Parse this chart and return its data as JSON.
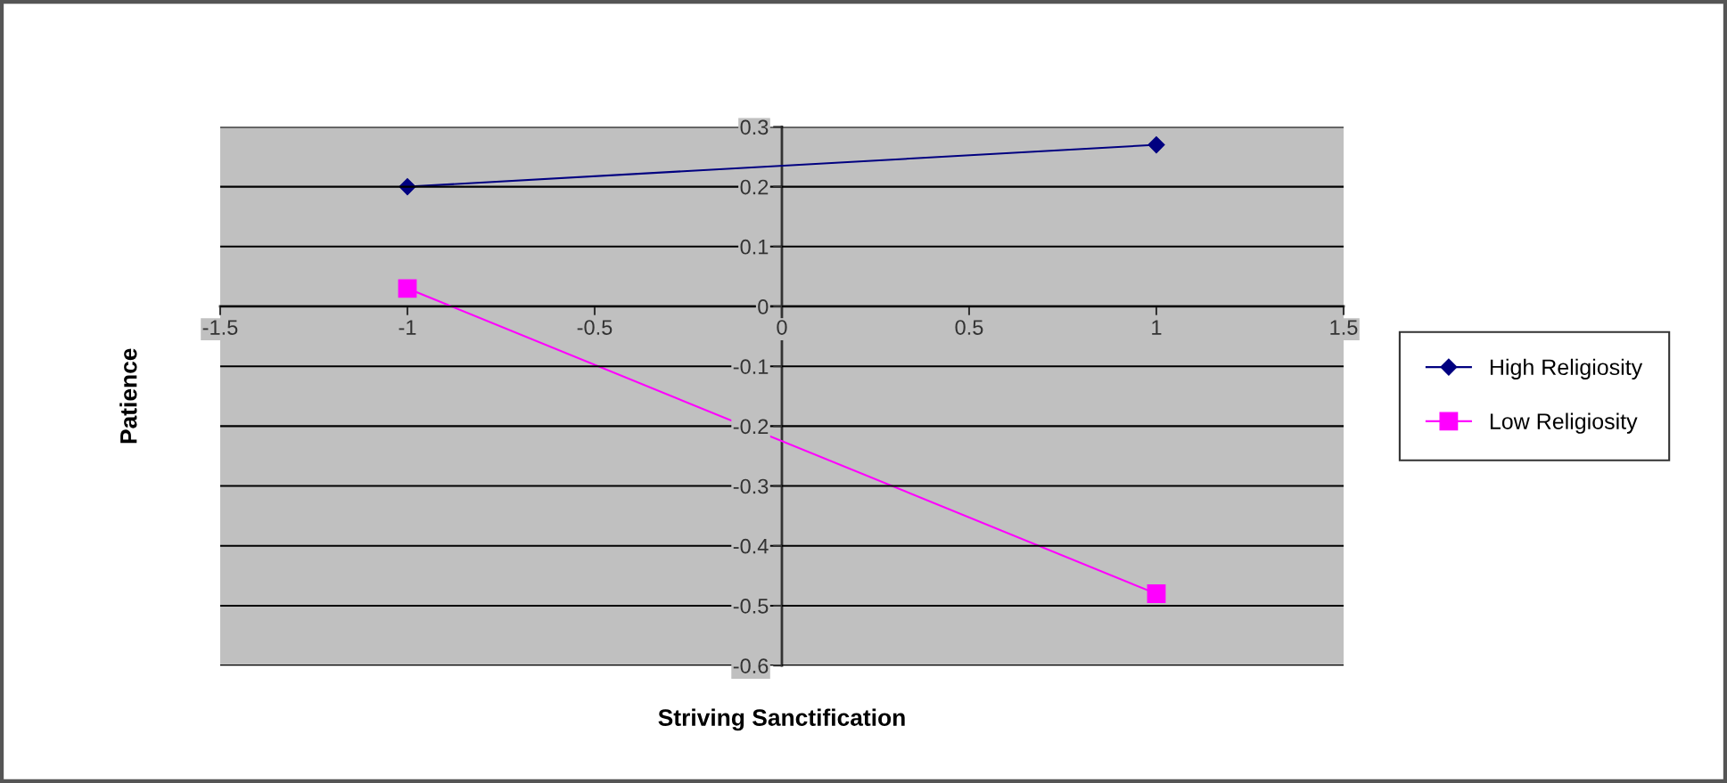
{
  "chart_data": {
    "type": "line",
    "xlabel": "Striving Sanctification",
    "ylabel": "Patience",
    "x": [
      -1,
      1
    ],
    "series": [
      {
        "name": "High Religiosity",
        "color": "#000080",
        "marker": "diamond",
        "values": [
          0.2,
          0.27
        ]
      },
      {
        "name": "Low Religiosity",
        "color": "#ff00ff",
        "marker": "square",
        "values": [
          0.03,
          -0.48
        ]
      }
    ],
    "xlim": [
      -1.5,
      1.5
    ],
    "xticks": [
      -1.5,
      -1,
      -0.5,
      0,
      0.5,
      1,
      1.5
    ],
    "ylim": [
      -0.6,
      0.3
    ],
    "yticks": [
      -0.6,
      -0.5,
      -0.4,
      -0.3,
      -0.2,
      -0.1,
      0,
      0.1,
      0.2,
      0.3
    ],
    "grid": "y",
    "legend": "right",
    "line_style": "solid"
  }
}
